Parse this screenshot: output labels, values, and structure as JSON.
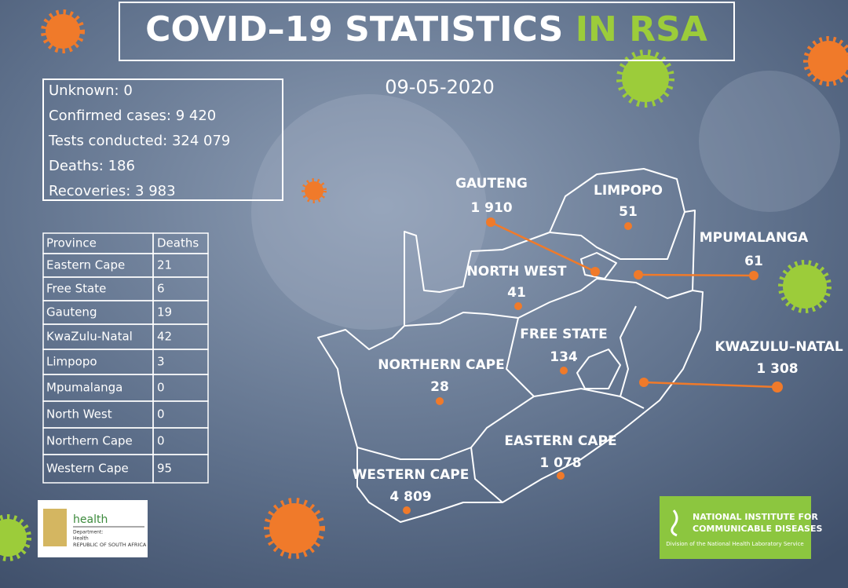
{
  "title": {
    "main": "COVID–19 STATISTICS",
    "highlight": "IN RSA"
  },
  "date": "09-05-2020",
  "summary": [
    "Unknown: 0",
    "Confirmed cases: 9 420",
    "Tests conducted: 324 079",
    "Deaths: 186",
    "Recoveries:  3 983"
  ],
  "table": {
    "header": [
      "Province",
      "Deaths"
    ],
    "rows": [
      [
        "Eastern Cape",
        "21"
      ],
      [
        "Free State",
        "6"
      ],
      [
        "Gauteng",
        "19"
      ],
      [
        "KwaZulu-Natal",
        "42"
      ],
      [
        "Limpopo",
        "3"
      ],
      [
        "Mpumalanga",
        "0"
      ],
      [
        "North West",
        "0"
      ],
      [
        "Northern Cape",
        "0"
      ],
      [
        "Western Cape",
        "95"
      ]
    ]
  },
  "map": {
    "provinces": [
      {
        "name": "GAUTENG",
        "cases": "1 910"
      },
      {
        "name": "LIMPOPO",
        "cases": "51"
      },
      {
        "name": "MPUMALANGA",
        "cases": "61"
      },
      {
        "name": "NORTH WEST",
        "cases": "41"
      },
      {
        "name": "FREE STATE",
        "cases": "134"
      },
      {
        "name": "KWAZULU–NATAL",
        "cases": "1 308"
      },
      {
        "name": "NORTHERN CAPE",
        "cases": "28"
      },
      {
        "name": "EASTERN CAPE",
        "cases": "1 078"
      },
      {
        "name": "WESTERN CAPE",
        "cases": "4 809"
      }
    ]
  },
  "logos": {
    "health": {
      "name": "health",
      "lines": [
        "Department:",
        "Health",
        "REPUBLIC OF SOUTH AFRICA"
      ]
    },
    "nicd": {
      "lines": [
        "NATIONAL INSTITUTE FOR",
        "COMMUNICABLE DISEASES"
      ],
      "subtitle": "Division of the National Health Laboratory Service"
    }
  }
}
